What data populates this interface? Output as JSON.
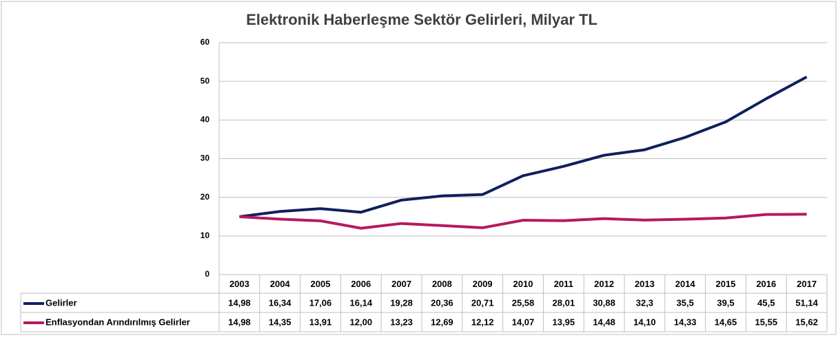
{
  "chart_data": {
    "type": "line",
    "title": "Elektronik Haberleşme Sektör Gelirleri, Milyar TL",
    "categories": [
      "2003",
      "2004",
      "2005",
      "2006",
      "2007",
      "2008",
      "2009",
      "2010",
      "2011",
      "2012",
      "2013",
      "2014",
      "2015",
      "2016",
      "2017"
    ],
    "series": [
      {
        "name": "Gelirler",
        "color": "#0f1f5e",
        "values": [
          14.98,
          16.34,
          17.06,
          16.14,
          19.28,
          20.36,
          20.71,
          25.58,
          28.01,
          30.88,
          32.3,
          35.5,
          39.5,
          45.5,
          51.14
        ],
        "value_labels": [
          "14,98",
          "16,34",
          "17,06",
          "16,14",
          "19,28",
          "20,36",
          "20,71",
          "25,58",
          "28,01",
          "30,88",
          "32,3",
          "35,5",
          "39,5",
          "45,5",
          "51,14"
        ]
      },
      {
        "name": "Enflasyondan Arındırılmış Gelirler",
        "color": "#b5195e",
        "values": [
          14.98,
          14.35,
          13.91,
          12.0,
          13.23,
          12.69,
          12.12,
          14.07,
          13.95,
          14.48,
          14.1,
          14.33,
          14.65,
          15.55,
          15.62
        ],
        "value_labels": [
          "14,98",
          "14,35",
          "13,91",
          "12,00",
          "13,23",
          "12,69",
          "12,12",
          "14,07",
          "13,95",
          "14,48",
          "14,10",
          "14,33",
          "14,65",
          "15,55",
          "15,62"
        ]
      }
    ],
    "ylim": [
      0,
      60
    ],
    "yticks": [
      0,
      10,
      20,
      30,
      40,
      50,
      60
    ],
    "grid": true
  }
}
